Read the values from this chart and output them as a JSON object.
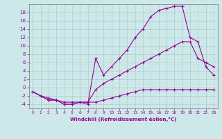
{
  "xlabel": "Windchill (Refroidissement éolien,°C)",
  "bg_color": "#cce8e8",
  "line_color": "#990099",
  "xlim": [
    -0.5,
    23.5
  ],
  "ylim": [
    -5,
    20
  ],
  "xticks": [
    0,
    1,
    2,
    3,
    4,
    5,
    6,
    7,
    8,
    9,
    10,
    11,
    12,
    13,
    14,
    15,
    16,
    17,
    18,
    19,
    20,
    21,
    22,
    23
  ],
  "yticks": [
    -4,
    -2,
    0,
    2,
    4,
    6,
    8,
    10,
    12,
    14,
    16,
    18
  ],
  "line1_x": [
    0,
    1,
    2,
    3,
    4,
    5,
    6,
    7,
    8,
    9,
    10,
    11,
    12,
    13,
    14,
    15,
    16,
    17,
    18,
    19,
    20,
    21,
    22,
    23
  ],
  "line1_y": [
    -1,
    -2,
    -2.5,
    -3,
    -3.5,
    -3.5,
    -3.5,
    -3.5,
    -3.5,
    -3,
    -2.5,
    -2,
    -1.5,
    -1,
    -0.5,
    -0.5,
    -0.5,
    -0.5,
    -0.5,
    -0.5,
    -0.5,
    -0.5,
    -0.5,
    -0.5
  ],
  "line2_x": [
    0,
    1,
    2,
    3,
    4,
    5,
    6,
    7,
    8,
    9,
    10,
    11,
    12,
    13,
    14,
    15,
    16,
    17,
    18,
    19,
    20,
    21,
    22,
    23
  ],
  "line2_y": [
    -1,
    -2,
    -3,
    -3,
    -4,
    -4,
    -3.5,
    -4,
    7,
    3,
    5,
    7,
    9,
    12,
    14,
    17,
    18.5,
    19,
    19.5,
    19.5,
    12,
    11,
    5,
    3
  ],
  "line3_x": [
    0,
    1,
    2,
    3,
    4,
    5,
    6,
    7,
    8,
    9,
    10,
    11,
    12,
    13,
    14,
    15,
    16,
    17,
    18,
    19,
    20,
    21,
    22,
    23
  ],
  "line3_y": [
    -1,
    -2,
    -3,
    -3,
    -4,
    -4,
    -3.5,
    -3.5,
    -0.5,
    1,
    2,
    3,
    4,
    5,
    6,
    7,
    8,
    9,
    10,
    11,
    11,
    7,
    6,
    5
  ]
}
